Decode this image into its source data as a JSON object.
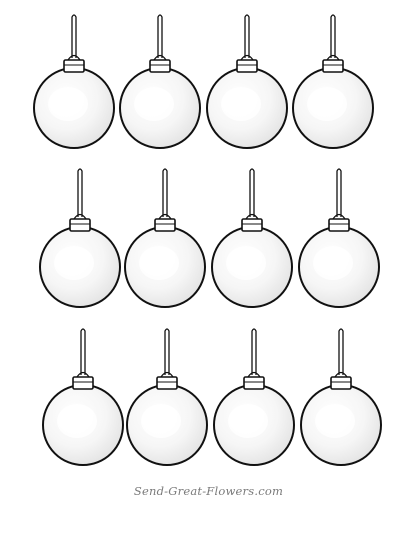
{
  "page": {
    "watermark": "Send-Great-Flowers.com"
  },
  "ornaments": {
    "rows": 3,
    "columns": 4,
    "count": 12,
    "style": "blank-round-bauble-outline",
    "fill_color": "#f7f7f7",
    "outline_color": "#111111",
    "highlight_color": "#dcdcdc"
  }
}
